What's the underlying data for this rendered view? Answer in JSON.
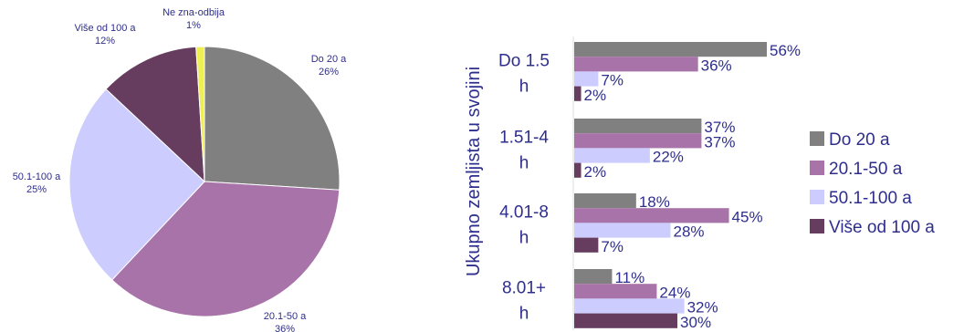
{
  "colors": {
    "do20": "#808080",
    "s20_50": "#a873a8",
    "s50_100": "#ccccff",
    "vise100": "#663d5e",
    "ne_zna": "#eeee55",
    "text": "#2e2e8c"
  },
  "chart_data": [
    {
      "type": "pie",
      "slices": [
        {
          "name": "Do 20 a",
          "value": 26,
          "label": "26%",
          "color_key": "do20"
        },
        {
          "name": "20.1-50 a",
          "value": 36,
          "label": "36%",
          "color_key": "s20_50"
        },
        {
          "name": "50.1-100 a",
          "value": 25,
          "label": "25%",
          "color_key": "s50_100"
        },
        {
          "name": "Više od 100 a",
          "value": 12,
          "label": "12%",
          "color_key": "vise100"
        },
        {
          "name": "Ne zna-odbija",
          "value": 1,
          "label": "1%",
          "color_key": "ne_zna"
        }
      ]
    },
    {
      "type": "bar",
      "orientation": "horizontal",
      "ylabel": "Ukupno zemljista u svojini",
      "categories": [
        [
          "Do 1.5",
          "h"
        ],
        [
          "1.51-4",
          "h"
        ],
        [
          "4.01-8",
          "h"
        ],
        [
          "8.01+",
          "h"
        ]
      ],
      "series": [
        {
          "name": "Do 20 a",
          "color_key": "do20",
          "values": [
            56,
            37,
            18,
            11
          ]
        },
        {
          "name": "20.1-50 a",
          "color_key": "s20_50",
          "values": [
            36,
            37,
            45,
            24
          ]
        },
        {
          "name": "50.1-100 a",
          "color_key": "s50_100",
          "values": [
            7,
            22,
            28,
            32
          ]
        },
        {
          "name": "Više od 100 a",
          "color_key": "vise100",
          "values": [
            2,
            2,
            7,
            30
          ]
        }
      ],
      "legend_position": "right",
      "value_suffix": "%"
    }
  ]
}
